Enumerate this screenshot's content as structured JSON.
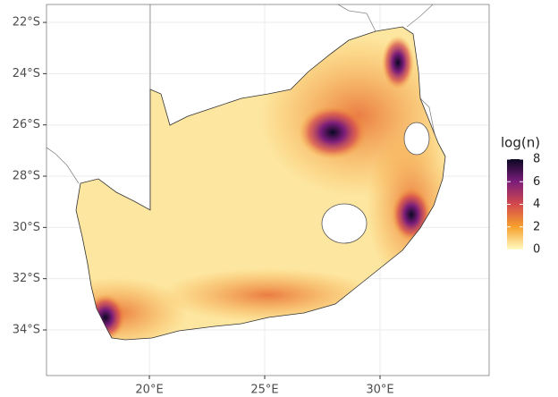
{
  "chart_data": {
    "type": "map",
    "xlim": [
      15.54,
      34.73
    ],
    "ylim": [
      -35.78,
      -21.3
    ],
    "xticks": [
      {
        "value": 20,
        "label": "20°E"
      },
      {
        "value": 25,
        "label": "25°E"
      },
      {
        "value": 30,
        "label": "30°E"
      }
    ],
    "yticks": [
      {
        "value": -22,
        "label": "22°S"
      },
      {
        "value": -24,
        "label": "24°S"
      },
      {
        "value": -26,
        "label": "26°S"
      },
      {
        "value": -28,
        "label": "28°S"
      },
      {
        "value": -30,
        "label": "30°S"
      },
      {
        "value": -32,
        "label": "32°S"
      },
      {
        "value": -34,
        "label": "34°S"
      }
    ],
    "grid": true,
    "legend": {
      "title": "log(n)",
      "lim": [
        0,
        8
      ],
      "ticks": [
        0,
        2,
        4,
        6,
        8
      ],
      "colors": [
        "#fffcc2",
        "#f7a12c",
        "#d44a4d",
        "#7b1d7a",
        "#0b0724"
      ]
    }
  }
}
